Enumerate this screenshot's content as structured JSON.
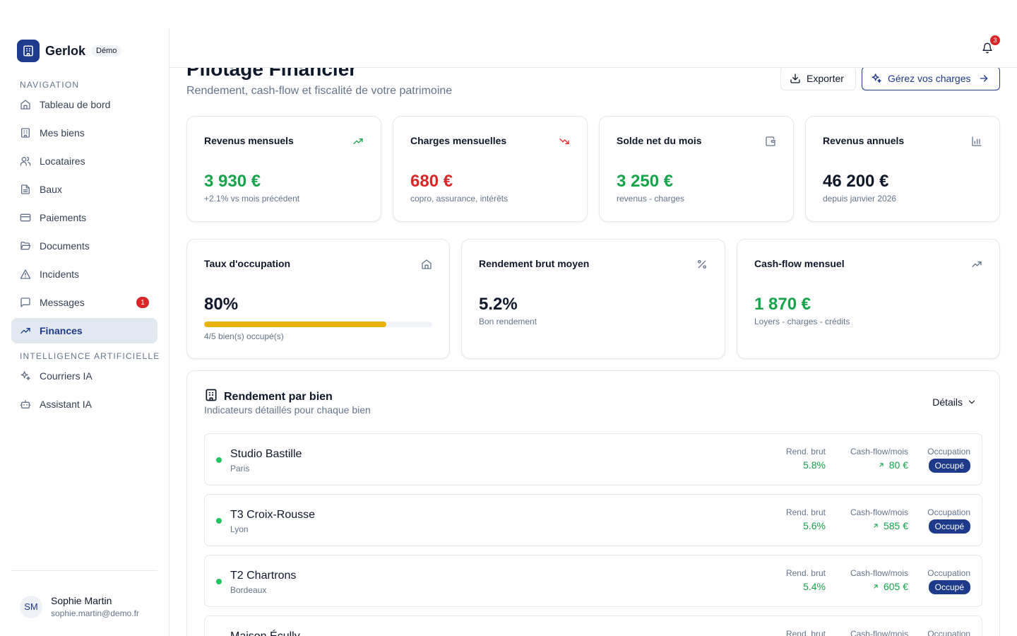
{
  "brand": {
    "name": "Gerlok",
    "badge": "Démo",
    "accent": "#1e3a8a"
  },
  "sidebar": {
    "navigation_label": "NAVIGATION",
    "items": [
      {
        "label": "Tableau de bord",
        "icon": "home-icon"
      },
      {
        "label": "Mes biens",
        "icon": "building-icon"
      },
      {
        "label": "Locataires",
        "icon": "users-icon"
      },
      {
        "label": "Baux",
        "icon": "file-text-icon"
      },
      {
        "label": "Paiements",
        "icon": "credit-card-icon"
      },
      {
        "label": "Documents",
        "icon": "folder-open-icon"
      },
      {
        "label": "Incidents",
        "icon": "alert-triangle-icon"
      },
      {
        "label": "Messages",
        "icon": "message-icon",
        "badge": "1"
      },
      {
        "label": "Finances",
        "icon": "trending-up-icon",
        "active": true
      }
    ],
    "ai_label": "INTELLIGENCE ARTIFICIELLE",
    "ai_items": [
      {
        "label": "Courriers IA",
        "icon": "sparkles-icon"
      },
      {
        "label": "Assistant IA",
        "icon": "bot-icon"
      }
    ],
    "user": {
      "initials": "SM",
      "name": "Sophie Martin",
      "email": "sophie.martin@demo.fr"
    }
  },
  "topbar": {
    "notification_count": "3"
  },
  "header": {
    "title": "Pilotage Financier",
    "subtitle": "Rendement, cash-flow et fiscalité de votre patrimoine",
    "export_label": "Exporter",
    "charges_label": "Gérez vos charges"
  },
  "stats_row1": [
    {
      "title": "Revenus mensuels",
      "value": "3 930 €",
      "sub": "+2.1% vs mois précédent",
      "icon": "trending-up-icon",
      "color": "#16a34a"
    },
    {
      "title": "Charges mensuelles",
      "value": "680 €",
      "sub": "copro, assurance, intérêts",
      "icon": "trending-down-icon",
      "color": "#dc2626"
    },
    {
      "title": "Solde net du mois",
      "value": "3 250 €",
      "sub": "revenus - charges",
      "icon": "wallet-icon",
      "color": "#16a34a"
    },
    {
      "title": "Revenus annuels",
      "value": "46 200 €",
      "sub": "depuis janvier 2026",
      "icon": "bar-chart-icon",
      "color": "#0f172a"
    }
  ],
  "stats_row2": {
    "occupancy": {
      "title": "Taux d'occupation",
      "value": "80%",
      "progress": 0.8,
      "sub": "4/5 bien(s) occupé(s)",
      "icon": "home-icon"
    },
    "yield": {
      "title": "Rendement brut moyen",
      "value": "5.2%",
      "sub": "Bon rendement",
      "icon": "percent-icon"
    },
    "cashflow": {
      "title": "Cash-flow mensuel",
      "value": "1 870 €",
      "sub": "Loyers - charges - crédits",
      "icon": "trending-up-icon"
    }
  },
  "yield_section": {
    "title": "Rendement par bien",
    "subtitle": "Indicateurs détaillés pour chaque bien",
    "details_label": "Détails",
    "col_rend": "Rend. brut",
    "col_cash": "Cash-flow/mois",
    "col_occ": "Occupation",
    "properties": [
      {
        "name": "Studio Bastille",
        "city": "Paris",
        "rend": "5.8%",
        "cash": "80 €",
        "occ": "Occupé"
      },
      {
        "name": "T3 Croix-Rousse",
        "city": "Lyon",
        "rend": "5.6%",
        "cash": "585 €",
        "occ": "Occupé"
      },
      {
        "name": "T2 Chartrons",
        "city": "Bordeaux",
        "rend": "5.4%",
        "cash": "605 €",
        "occ": "Occupé"
      },
      {
        "name": "Maison Écully",
        "city": "",
        "rend": "",
        "cash": "",
        "occ": ""
      }
    ]
  }
}
